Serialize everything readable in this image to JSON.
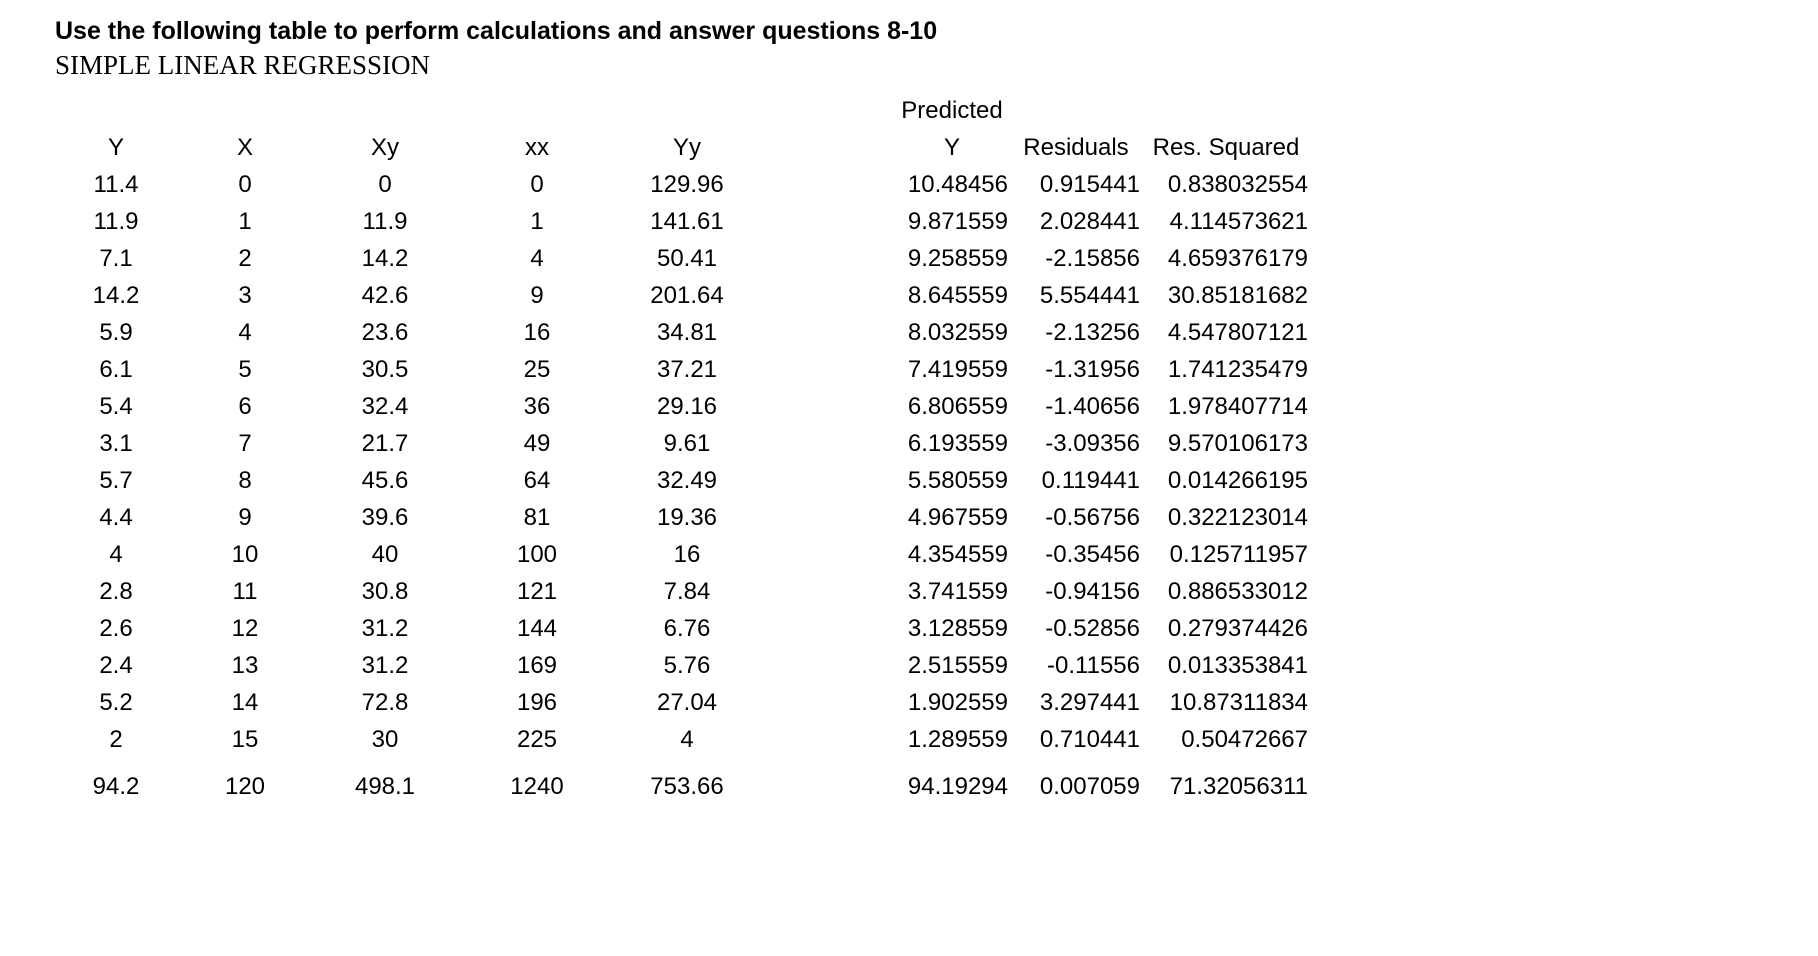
{
  "title": "Use the following table to perform calculations and answer questions 8-10",
  "subtitle": "SIMPLE LINEAR REGRESSION",
  "table": {
    "header_overline": "Predicted",
    "columns": [
      "Y",
      "X",
      "Xy",
      "xx",
      "Yy",
      "Y",
      "Residuals",
      "Res. Squared"
    ],
    "rows": [
      [
        "11.4",
        "0",
        "0",
        "0",
        "129.96",
        "10.48456",
        "0.915441",
        "0.838032554"
      ],
      [
        "11.9",
        "1",
        "11.9",
        "1",
        "141.61",
        "9.871559",
        "2.028441",
        "4.114573621"
      ],
      [
        "7.1",
        "2",
        "14.2",
        "4",
        "50.41",
        "9.258559",
        "-2.15856",
        "4.659376179"
      ],
      [
        "14.2",
        "3",
        "42.6",
        "9",
        "201.64",
        "8.645559",
        "5.554441",
        "30.85181682"
      ],
      [
        "5.9",
        "4",
        "23.6",
        "16",
        "34.81",
        "8.032559",
        "-2.13256",
        "4.547807121"
      ],
      [
        "6.1",
        "5",
        "30.5",
        "25",
        "37.21",
        "7.419559",
        "-1.31956",
        "1.741235479"
      ],
      [
        "5.4",
        "6",
        "32.4",
        "36",
        "29.16",
        "6.806559",
        "-1.40656",
        "1.978407714"
      ],
      [
        "3.1",
        "7",
        "21.7",
        "49",
        "9.61",
        "6.193559",
        "-3.09356",
        "9.570106173"
      ],
      [
        "5.7",
        "8",
        "45.6",
        "64",
        "32.49",
        "5.580559",
        "0.119441",
        "0.014266195"
      ],
      [
        "4.4",
        "9",
        "39.6",
        "81",
        "19.36",
        "4.967559",
        "-0.56756",
        "0.322123014"
      ],
      [
        "4",
        "10",
        "40",
        "100",
        "16",
        "4.354559",
        "-0.35456",
        "0.125711957"
      ],
      [
        "2.8",
        "11",
        "30.8",
        "121",
        "7.84",
        "3.741559",
        "-0.94156",
        "0.886533012"
      ],
      [
        "2.6",
        "12",
        "31.2",
        "144",
        "6.76",
        "3.128559",
        "-0.52856",
        "0.279374426"
      ],
      [
        "2.4",
        "13",
        "31.2",
        "169",
        "5.76",
        "2.515559",
        "-0.11556",
        "0.013353841"
      ],
      [
        "5.2",
        "14",
        "72.8",
        "196",
        "27.04",
        "1.902559",
        "3.297441",
        "10.87311834"
      ],
      [
        "2",
        "15",
        "30",
        "225",
        "4",
        "1.289559",
        "0.710441",
        "0.50472667"
      ]
    ],
    "totals": [
      "94.2",
      "120",
      "498.1",
      "1240",
      "753.66",
      "94.19294",
      "0.007059",
      "71.32056311"
    ]
  }
}
